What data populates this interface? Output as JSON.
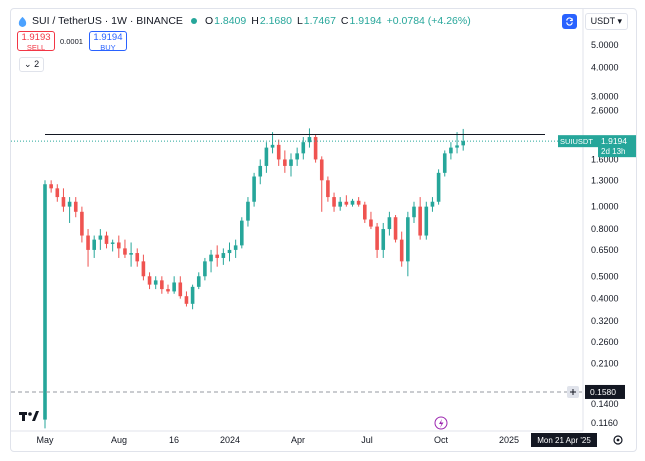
{
  "header": {
    "symbol_line": "SUI / TetherUS · 1W · BINANCE",
    "ohlc": [
      {
        "label": "O",
        "value": "1.8409"
      },
      {
        "label": "H",
        "value": "2.1680"
      },
      {
        "label": "L",
        "value": "1.7467"
      },
      {
        "label": "C",
        "value": "1.9194"
      }
    ],
    "change": "+0.0784 (+4.26%)"
  },
  "trade": {
    "sell_price": "1.9193",
    "sell_label": "SELL",
    "spread": "0.0001",
    "buy_price": "1.9194",
    "buy_label": "BUY"
  },
  "indicators_collapse": "2",
  "currency_selector": "USDT",
  "price_axis": {
    "ticks": [
      "5.0000",
      "4.0000",
      "3.0000",
      "2.6000",
      "1.6000",
      "1.3000",
      "1.0000",
      "0.8000",
      "0.6500",
      "0.5000",
      "0.4000",
      "0.3200",
      "0.2600",
      "0.2100",
      "0.1400",
      "0.1160"
    ],
    "last_price_symbol": "SUIUSDT",
    "last_price": "1.9194",
    "countdown": "2d 13h",
    "crosshair_price": "0.1580"
  },
  "time_axis": {
    "ticks": [
      "May",
      "Aug",
      "16",
      "2024",
      "Apr",
      "Jul",
      "Oct",
      "2025"
    ],
    "crosshair_date": "Mon 21 Apr '25"
  },
  "colors": {
    "up": "#26a69a",
    "down": "#ef5350",
    "accent": "#2962ff"
  },
  "icons": [
    "sync-icon",
    "chevron-down-icon",
    "chevron-down-small-icon",
    "crosshair-plus-icon",
    "lightning-event-icon",
    "settings-gear-icon",
    "tradingview-logo-icon",
    "symbol-logo-icon"
  ],
  "chart_data": {
    "type": "candlestick",
    "scale": "log",
    "series": [
      {
        "o": 0.12,
        "h": 1.3,
        "l": 0.11,
        "c": 1.25
      },
      {
        "o": 1.25,
        "h": 1.3,
        "l": 1.15,
        "c": 1.2
      },
      {
        "o": 1.2,
        "h": 1.25,
        "l": 1.05,
        "c": 1.1
      },
      {
        "o": 1.1,
        "h": 1.2,
        "l": 0.95,
        "c": 1.0
      },
      {
        "o": 1.0,
        "h": 1.1,
        "l": 0.85,
        "c": 1.05
      },
      {
        "o": 1.05,
        "h": 1.1,
        "l": 0.9,
        "c": 0.95
      },
      {
        "o": 0.95,
        "h": 1.0,
        "l": 0.7,
        "c": 0.75
      },
      {
        "o": 0.75,
        "h": 0.8,
        "l": 0.55,
        "c": 0.65
      },
      {
        "o": 0.65,
        "h": 0.75,
        "l": 0.6,
        "c": 0.72
      },
      {
        "o": 0.72,
        "h": 0.8,
        "l": 0.65,
        "c": 0.75
      },
      {
        "o": 0.75,
        "h": 0.78,
        "l": 0.66,
        "c": 0.69
      },
      {
        "o": 0.69,
        "h": 0.72,
        "l": 0.64,
        "c": 0.7
      },
      {
        "o": 0.7,
        "h": 0.75,
        "l": 0.6,
        "c": 0.66
      },
      {
        "o": 0.66,
        "h": 0.72,
        "l": 0.6,
        "c": 0.62
      },
      {
        "o": 0.62,
        "h": 0.7,
        "l": 0.55,
        "c": 0.63
      },
      {
        "o": 0.63,
        "h": 0.66,
        "l": 0.55,
        "c": 0.58
      },
      {
        "o": 0.58,
        "h": 0.62,
        "l": 0.48,
        "c": 0.5
      },
      {
        "o": 0.5,
        "h": 0.52,
        "l": 0.44,
        "c": 0.46
      },
      {
        "o": 0.46,
        "h": 0.5,
        "l": 0.44,
        "c": 0.48
      },
      {
        "o": 0.48,
        "h": 0.5,
        "l": 0.42,
        "c": 0.44
      },
      {
        "o": 0.44,
        "h": 0.46,
        "l": 0.42,
        "c": 0.43
      },
      {
        "o": 0.43,
        "h": 0.5,
        "l": 0.42,
        "c": 0.47
      },
      {
        "o": 0.47,
        "h": 0.5,
        "l": 0.4,
        "c": 0.41
      },
      {
        "o": 0.41,
        "h": 0.43,
        "l": 0.37,
        "c": 0.38
      },
      {
        "o": 0.38,
        "h": 0.46,
        "l": 0.36,
        "c": 0.45
      },
      {
        "o": 0.45,
        "h": 0.52,
        "l": 0.44,
        "c": 0.5
      },
      {
        "o": 0.5,
        "h": 0.6,
        "l": 0.48,
        "c": 0.58
      },
      {
        "o": 0.58,
        "h": 0.65,
        "l": 0.52,
        "c": 0.62
      },
      {
        "o": 0.62,
        "h": 0.68,
        "l": 0.55,
        "c": 0.6
      },
      {
        "o": 0.6,
        "h": 0.66,
        "l": 0.56,
        "c": 0.63
      },
      {
        "o": 0.63,
        "h": 0.7,
        "l": 0.58,
        "c": 0.65
      },
      {
        "o": 0.65,
        "h": 0.72,
        "l": 0.6,
        "c": 0.68
      },
      {
        "o": 0.68,
        "h": 0.9,
        "l": 0.66,
        "c": 0.87
      },
      {
        "o": 0.87,
        "h": 1.1,
        "l": 0.82,
        "c": 1.05
      },
      {
        "o": 1.05,
        "h": 1.4,
        "l": 1.0,
        "c": 1.35
      },
      {
        "o": 1.35,
        "h": 1.6,
        "l": 1.25,
        "c": 1.5
      },
      {
        "o": 1.5,
        "h": 1.9,
        "l": 1.4,
        "c": 1.8
      },
      {
        "o": 1.8,
        "h": 2.1,
        "l": 1.7,
        "c": 1.85
      },
      {
        "o": 1.85,
        "h": 1.95,
        "l": 1.5,
        "c": 1.6
      },
      {
        "o": 1.6,
        "h": 1.75,
        "l": 1.4,
        "c": 1.5
      },
      {
        "o": 1.5,
        "h": 1.7,
        "l": 1.35,
        "c": 1.6
      },
      {
        "o": 1.6,
        "h": 1.8,
        "l": 1.5,
        "c": 1.7
      },
      {
        "o": 1.7,
        "h": 2.0,
        "l": 1.6,
        "c": 1.9
      },
      {
        "o": 1.9,
        "h": 2.18,
        "l": 1.8,
        "c": 2.0
      },
      {
        "o": 2.0,
        "h": 2.05,
        "l": 1.55,
        "c": 1.6
      },
      {
        "o": 1.6,
        "h": 1.65,
        "l": 0.95,
        "c": 1.3
      },
      {
        "o": 1.3,
        "h": 1.35,
        "l": 1.05,
        "c": 1.1
      },
      {
        "o": 1.1,
        "h": 1.15,
        "l": 0.95,
        "c": 1.0
      },
      {
        "o": 1.0,
        "h": 1.1,
        "l": 0.96,
        "c": 1.05
      },
      {
        "o": 1.05,
        "h": 1.12,
        "l": 1.0,
        "c": 1.02
      },
      {
        "o": 1.02,
        "h": 1.08,
        "l": 1.0,
        "c": 1.06
      },
      {
        "o": 1.06,
        "h": 1.1,
        "l": 1.0,
        "c": 1.02
      },
      {
        "o": 1.02,
        "h": 1.05,
        "l": 0.85,
        "c": 0.88
      },
      {
        "o": 0.88,
        "h": 0.95,
        "l": 0.8,
        "c": 0.82
      },
      {
        "o": 0.82,
        "h": 0.85,
        "l": 0.6,
        "c": 0.65
      },
      {
        "o": 0.65,
        "h": 0.85,
        "l": 0.6,
        "c": 0.8
      },
      {
        "o": 0.8,
        "h": 0.95,
        "l": 0.75,
        "c": 0.9
      },
      {
        "o": 0.9,
        "h": 0.92,
        "l": 0.7,
        "c": 0.72
      },
      {
        "o": 0.72,
        "h": 0.78,
        "l": 0.55,
        "c": 0.58
      },
      {
        "o": 0.58,
        "h": 0.95,
        "l": 0.5,
        "c": 0.9
      },
      {
        "o": 0.9,
        "h": 1.05,
        "l": 0.85,
        "c": 1.0
      },
      {
        "o": 1.0,
        "h": 1.1,
        "l": 0.72,
        "c": 0.75
      },
      {
        "o": 0.75,
        "h": 1.05,
        "l": 0.72,
        "c": 1.0
      },
      {
        "o": 1.0,
        "h": 1.1,
        "l": 0.95,
        "c": 1.05
      },
      {
        "o": 1.05,
        "h": 1.45,
        "l": 1.02,
        "c": 1.4
      },
      {
        "o": 1.4,
        "h": 1.75,
        "l": 1.35,
        "c": 1.7
      },
      {
        "o": 1.7,
        "h": 1.9,
        "l": 1.6,
        "c": 1.8
      },
      {
        "o": 1.8,
        "h": 2.1,
        "l": 1.7,
        "c": 1.84
      },
      {
        "o": 1.8409,
        "h": 2.168,
        "l": 1.7467,
        "c": 1.9194
      }
    ]
  }
}
